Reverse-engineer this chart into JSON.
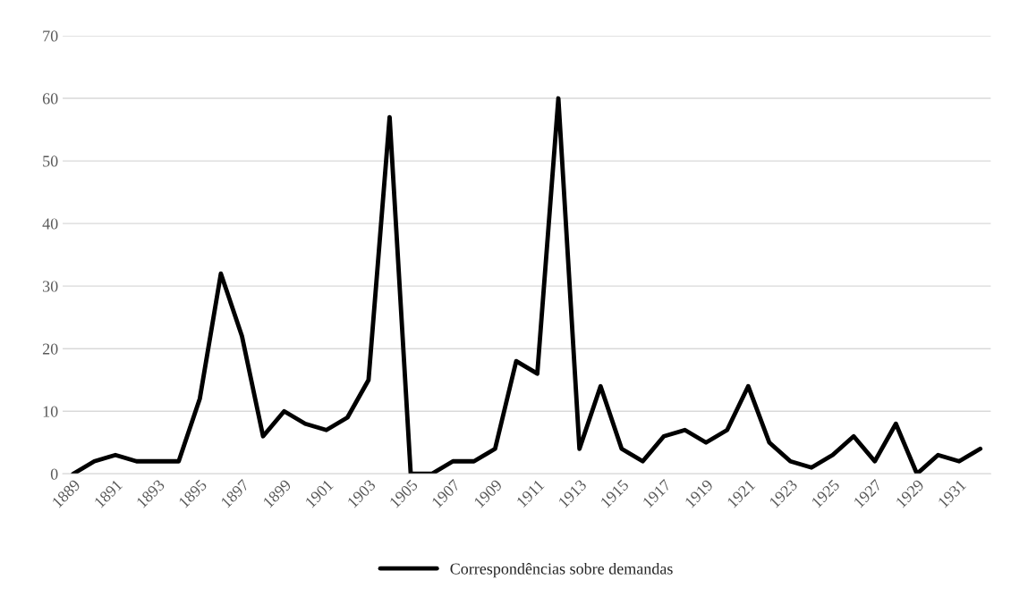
{
  "chart_data": {
    "type": "line",
    "categories": [
      "1889",
      null,
      "1891",
      null,
      "1893",
      null,
      "1895",
      null,
      "1897",
      null,
      "1899",
      null,
      "1901",
      null,
      "1903",
      null,
      "1905",
      null,
      "1907",
      null,
      "1909",
      null,
      "1911",
      null,
      "1913",
      null,
      "1915",
      null,
      "1917",
      null,
      "1919",
      null,
      "1921",
      null,
      "1923",
      null,
      "1925",
      null,
      "1927",
      null,
      "1929",
      null,
      "1931",
      null
    ],
    "series": [
      {
        "name": "Correspondências sobre demandas",
        "color": "#000000",
        "values": [
          0,
          2,
          3,
          2,
          2,
          2,
          12,
          32,
          22,
          6,
          10,
          8,
          7,
          9,
          15,
          57,
          0,
          0,
          2,
          2,
          4,
          18,
          16,
          60,
          4,
          14,
          4,
          2,
          6,
          7,
          5,
          7,
          14,
          5,
          2,
          1,
          3,
          6,
          2,
          8,
          0,
          3,
          2,
          4
        ]
      }
    ],
    "ylim": [
      0,
      70
    ],
    "yticks": [
      0,
      10,
      20,
      30,
      40,
      50,
      60,
      70
    ],
    "grid": "y",
    "legend": "bottom",
    "marker": "none",
    "line_style": "solid"
  }
}
